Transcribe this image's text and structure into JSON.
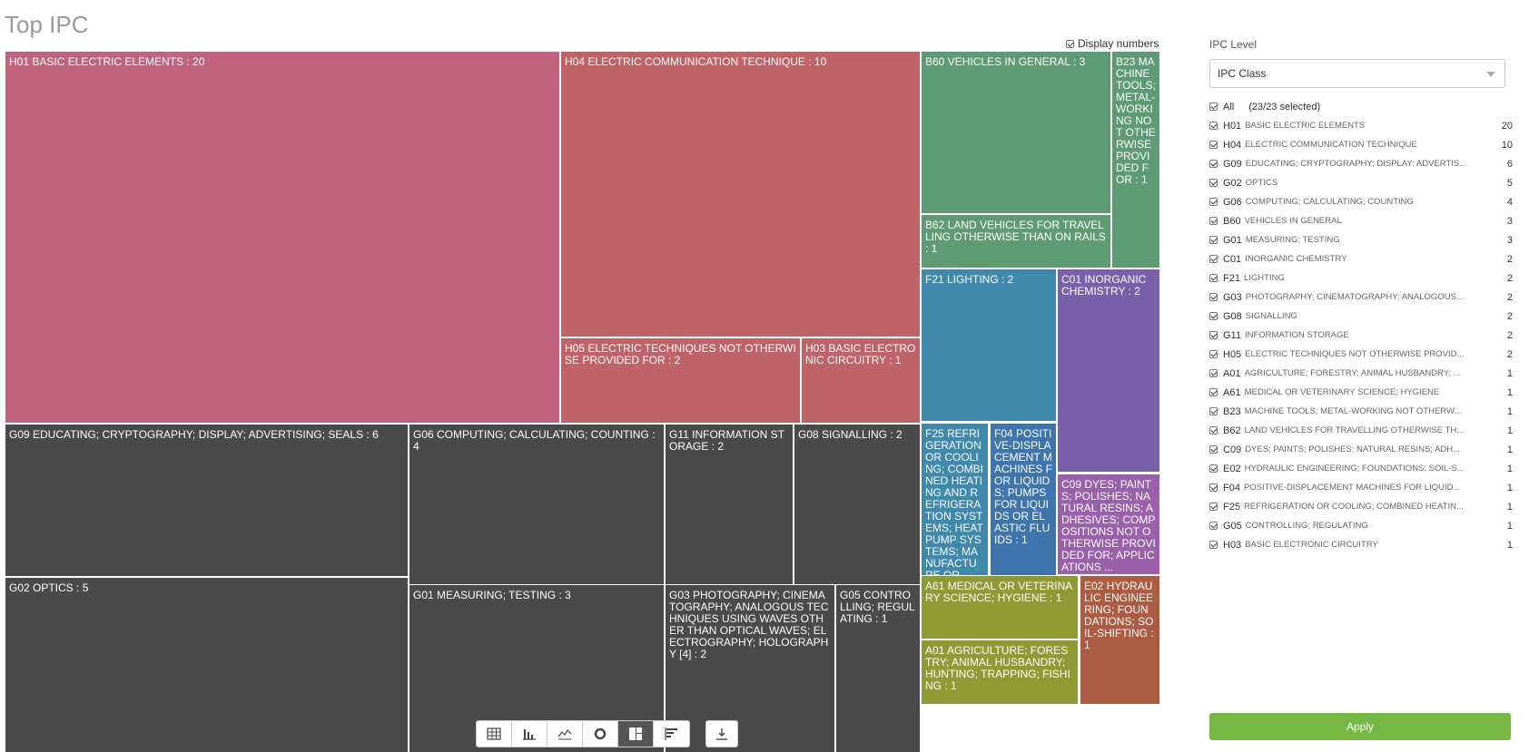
{
  "page": {
    "title": "Top IPC"
  },
  "display_numbers": {
    "label": "Display numbers",
    "checked": true
  },
  "chart_data": {
    "type": "treemap",
    "title": "Top IPC",
    "tiles": [
      {
        "code": "H01",
        "label": "H01 BASIC ELECTRIC ELEMENTS : 20",
        "value": 20,
        "color": "#bf637e"
      },
      {
        "code": "H04",
        "label": "H04 ELECTRIC COMMUNICATION TECHNIQUE : 10",
        "value": 10,
        "color": "#bf6368"
      },
      {
        "code": "H05",
        "label": "H05 ELECTRIC TECHNIQUES NOT OTHERWISE PROVIDED FOR : 2",
        "value": 2,
        "color": "#bf6368"
      },
      {
        "code": "H03",
        "label": "H03 BASIC ELECTRONIC CIRCUITRY : 1",
        "value": 1,
        "color": "#bf6368"
      },
      {
        "code": "G09",
        "label": "G09 EDUCATING; CRYPTOGRAPHY; DISPLAY; ADVERTISING; SEALS : 6",
        "value": 6,
        "color": "#4a4a4a"
      },
      {
        "code": "G06",
        "label": "G06 COMPUTING; CALCULATING; COUNTING : 4",
        "value": 4,
        "color": "#4a4a4a"
      },
      {
        "code": "G11",
        "label": "G11 INFORMATION STORAGE : 2",
        "value": 2,
        "color": "#4a4a4a"
      },
      {
        "code": "G08",
        "label": "G08 SIGNALLING : 2",
        "value": 2,
        "color": "#4a4a4a"
      },
      {
        "code": "G02",
        "label": "G02 OPTICS : 5",
        "value": 5,
        "color": "#4a4a4a"
      },
      {
        "code": "G01",
        "label": "G01 MEASURING; TESTING : 3",
        "value": 3,
        "color": "#4a4a4a"
      },
      {
        "code": "G03",
        "label": "G03 PHOTOGRAPHY; CINEMATOGRAPHY; ANALOGOUS TECHNIQUES USING WAVES OTHER THAN OPTICAL WAVES; ELECTROGRAPHY; HOLOGRAPHY [4] : 2",
        "value": 2,
        "color": "#4a4a4a"
      },
      {
        "code": "G05",
        "label": "G05 CONTROLLING; REGULATING : 1",
        "value": 1,
        "color": "#4a4a4a"
      },
      {
        "code": "B60",
        "label": "B60 VEHICLES IN GENERAL : 3",
        "value": 3,
        "color": "#5e9a74"
      },
      {
        "code": "B23",
        "label": "B23 MACHINE TOOLS; METAL-WORKING NOT OTHERWISE PROVIDED FOR : 1",
        "value": 1,
        "color": "#5e9a74"
      },
      {
        "code": "B62",
        "label": "B62 LAND VEHICLES FOR TRAVELLING OTHERWISE THAN ON RAILS : 1",
        "value": 1,
        "color": "#5e9a74"
      },
      {
        "code": "F21",
        "label": "F21 LIGHTING : 2",
        "value": 2,
        "color": "#3f89ad"
      },
      {
        "code": "F25",
        "label": "F25 REFRIGERATION OR COOLING; COMBINED HEATING AND REFRIGERATION SYSTEMS; HEAT PUMP SYSTEMS; MANUFACTURE OR ...",
        "value": 1,
        "color": "#3f89ad"
      },
      {
        "code": "F04",
        "label": "F04 POSITIVE-DISPLACEMENT MACHINES FOR LIQUIDS; PUMPS FOR LIQUIDS OR ELASTIC FLUIDS : 1",
        "value": 1,
        "color": "#3f75ad"
      },
      {
        "code": "C01",
        "label": "C01 INORGANIC CHEMISTRY : 2",
        "value": 2,
        "color": "#7a60ab"
      },
      {
        "code": "C09",
        "label": "C09 DYES; PAINTS; POLISHES; NATURAL RESINS; ADHESIVES; COMPOSITIONS NOT OTHERWISE PROVIDED FOR; APPLICATIONS ...",
        "value": 1,
        "color": "#9a60ab"
      },
      {
        "code": "A61",
        "label": "A61 MEDICAL OR VETERINARY SCIENCE; HYGIENE : 1",
        "value": 1,
        "color": "#8e9a34"
      },
      {
        "code": "A01",
        "label": "A01 AGRICULTURE; FORESTRY; ANIMAL HUSBANDRY; HUNTING; TRAPPING; FISHING : 1",
        "value": 1,
        "color": "#8e9a34"
      },
      {
        "code": "E02",
        "label": "E02 HYDRAULIC ENGINEERING; FOUNDATIONS; SOIL-SHIFTING : 1",
        "value": 1,
        "color": "#ad5c44"
      }
    ]
  },
  "toolbar": {
    "buttons": [
      {
        "name": "table-view-button",
        "icon": "table-icon",
        "active": false
      },
      {
        "name": "bar-chart-button",
        "icon": "bar-chart-icon",
        "active": false
      },
      {
        "name": "line-chart-button",
        "icon": "line-chart-icon",
        "active": false
      },
      {
        "name": "donut-chart-button",
        "icon": "donut-icon",
        "active": false
      },
      {
        "name": "treemap-button",
        "icon": "treemap-icon",
        "active": true
      },
      {
        "name": "horizontal-bar-button",
        "icon": "horizontal-bar-icon",
        "active": false
      }
    ],
    "download_icon": "download-icon"
  },
  "panel": {
    "label": "IPC Level",
    "select_value": "IPC Class",
    "all_label": "All",
    "selected_count": "(23/23 selected)",
    "items": [
      {
        "code": "H01",
        "desc": "BASIC ELECTRIC ELEMENTS",
        "count": "20"
      },
      {
        "code": "H04",
        "desc": "ELECTRIC COMMUNICATION TECHNIQUE",
        "count": "10"
      },
      {
        "code": "G09",
        "desc": "EDUCATING; CRYPTOGRAPHY; DISPLAY; ADVERTIS...",
        "count": "6"
      },
      {
        "code": "G02",
        "desc": "OPTICS",
        "count": "5"
      },
      {
        "code": "G06",
        "desc": "COMPUTING; CALCULATING; COUNTING",
        "count": "4"
      },
      {
        "code": "B60",
        "desc": "VEHICLES IN GENERAL",
        "count": "3"
      },
      {
        "code": "G01",
        "desc": "MEASURING; TESTING",
        "count": "3"
      },
      {
        "code": "C01",
        "desc": "INORGANIC CHEMISTRY",
        "count": "2"
      },
      {
        "code": "F21",
        "desc": "LIGHTING",
        "count": "2"
      },
      {
        "code": "G03",
        "desc": "PHOTOGRAPHY; CINEMATOGRAPHY; ANALOGOUS...",
        "count": "2"
      },
      {
        "code": "G08",
        "desc": "SIGNALLING",
        "count": "2"
      },
      {
        "code": "G11",
        "desc": "INFORMATION STORAGE",
        "count": "2"
      },
      {
        "code": "H05",
        "desc": "ELECTRIC TECHNIQUES NOT OTHERWISE PROVID...",
        "count": "2"
      },
      {
        "code": "A01",
        "desc": "AGRICULTURE; FORESTRY; ANIMAL HUSBANDRY; ...",
        "count": "1"
      },
      {
        "code": "A61",
        "desc": "MEDICAL OR VETERINARY SCIENCE; HYGIENE",
        "count": "1"
      },
      {
        "code": "B23",
        "desc": "MACHINE TOOLS; METAL-WORKING NOT OTHERW...",
        "count": "1"
      },
      {
        "code": "B62",
        "desc": "LAND VEHICLES FOR TRAVELLING OTHERWISE TH...",
        "count": "1"
      },
      {
        "code": "C09",
        "desc": "DYES; PAINTS; POLISHES; NATURAL RESINS; ADH...",
        "count": "1"
      },
      {
        "code": "E02",
        "desc": "HYDRAULIC ENGINEERING; FOUNDATIONS; SOIL-S...",
        "count": "1"
      },
      {
        "code": "F04",
        "desc": "POSITIVE-DISPLACEMENT MACHINES FOR LIQUID...",
        "count": "1"
      },
      {
        "code": "F25",
        "desc": "REFRIGERATION OR COOLING; COMBINED HEATIN...",
        "count": "1"
      },
      {
        "code": "G05",
        "desc": "CONTROLLING; REGULATING",
        "count": "1"
      },
      {
        "code": "H03",
        "desc": "BASIC ELECTRONIC CIRCUITRY",
        "count": "1"
      }
    ],
    "apply_label": "Apply"
  }
}
